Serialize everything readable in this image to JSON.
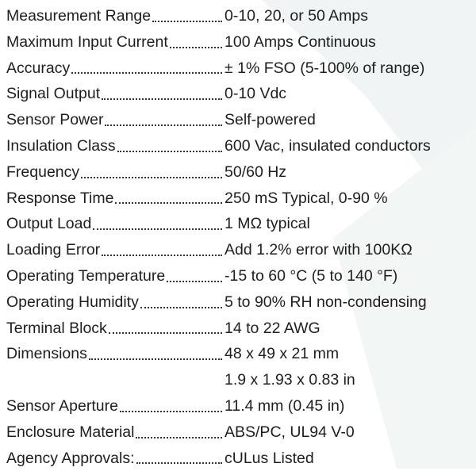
{
  "specs": [
    {
      "label": "Measurement Range",
      "lines": [
        "0-10, 20, or 50 Amps"
      ]
    },
    {
      "label": "Maximum Input Current",
      "lines": [
        "100 Amps Continuous"
      ]
    },
    {
      "label": "Accuracy",
      "lines": [
        "± 1% FSO (5-100% of range)"
      ]
    },
    {
      "label": "Signal Output",
      "lines": [
        "0-10 Vdc"
      ]
    },
    {
      "label": "Sensor Power",
      "lines": [
        "Self-powered"
      ]
    },
    {
      "label": "Insulation Class",
      "lines": [
        "600 Vac, insulated conductors"
      ]
    },
    {
      "label": "Frequency",
      "lines": [
        "50/60 Hz"
      ]
    },
    {
      "label": "Response Time",
      "lines": [
        "250 mS Typical, 0-90 %"
      ]
    },
    {
      "label": "Output Load",
      "lines": [
        "1 MΩ typical"
      ]
    },
    {
      "label": "Loading Error",
      "lines": [
        "Add 1.2% error with 100KΩ"
      ]
    },
    {
      "label": "Operating Temperature",
      "lines": [
        "-15 to 60 °C  (5 to 140 °F)"
      ]
    },
    {
      "label": "Operating Humidity",
      "lines": [
        "5 to 90% RH non-condensing"
      ]
    },
    {
      "label": "Terminal Block",
      "lines": [
        "14 to 22 AWG"
      ]
    },
    {
      "label": "Dimensions",
      "lines": [
        "48 x 49 x 21 mm",
        "1.9 x 1.93 x 0.83 in"
      ]
    },
    {
      "label": "Sensor Aperture",
      "lines": [
        "11.4 mm (0.45 in)"
      ]
    },
    {
      "label": "Enclosure Material",
      "lines": [
        "ABS/PC, UL94 V-0"
      ]
    },
    {
      "label": "Agency Approvals:",
      "lines": [
        "cULus Listed"
      ]
    }
  ]
}
